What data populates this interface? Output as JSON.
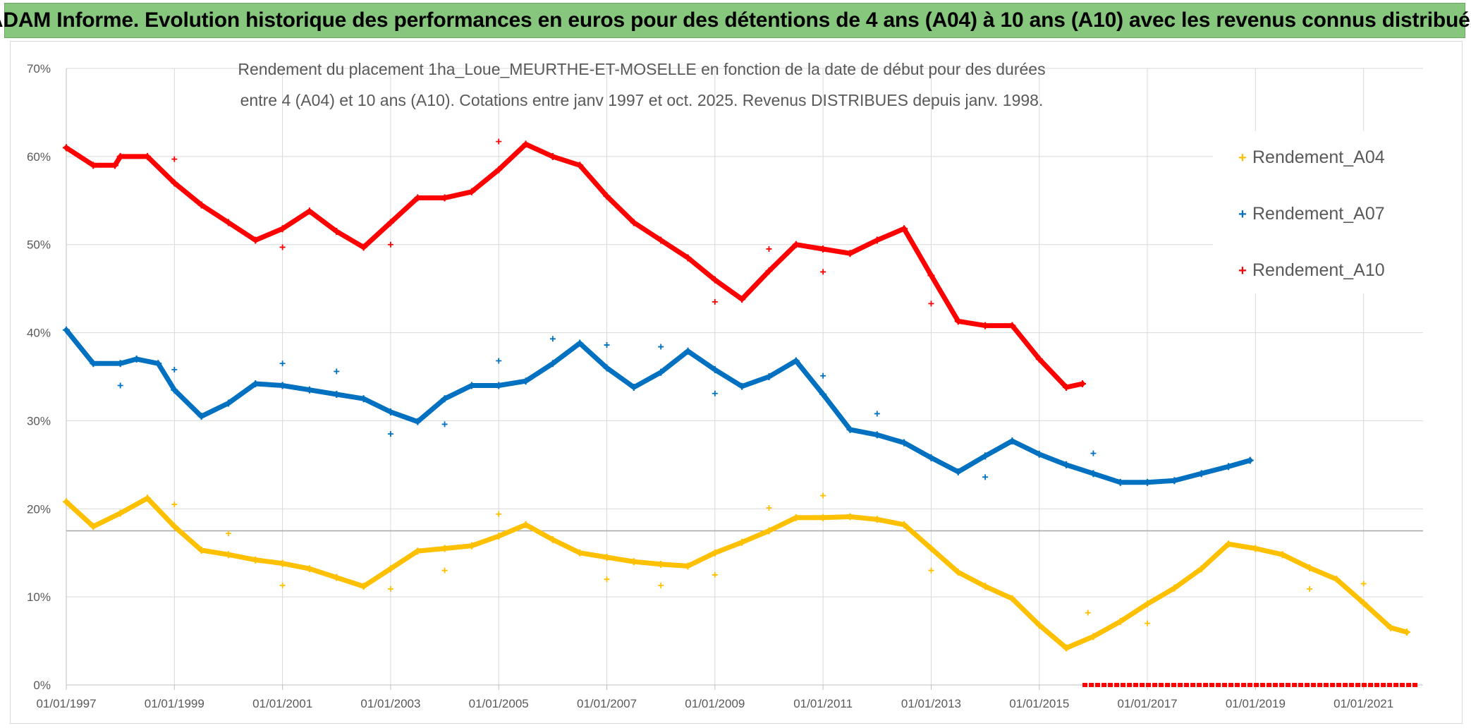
{
  "banner": {
    "title": "ADAM Informe. Evolution historique des performances en euros pour des détentions de 4 ans (A04) à 10 ans (A10) avec les revenus connus distribués"
  },
  "colors": {
    "banner_bg": "#86c67d",
    "A04": "#ffc000",
    "A07": "#0070c0",
    "A10": "#ff0000",
    "grid": "#d9d9d9",
    "text": "#595959"
  },
  "chart_data": {
    "type": "scatter",
    "title_lines": [
      "Rendement du placement 1ha_Loue_MEURTHE-ET-MOSELLE en fonction de la date de début pour des durées",
      "entre 4 (A04) et 10 ans (A10). Cotations entre janv 1997 et oct. 2025. Revenus DISTRIBUES depuis janv. 1998."
    ],
    "xlabel": "",
    "ylabel": "",
    "xlim": [
      1997.0,
      2022.1
    ],
    "ylim": [
      0,
      70
    ],
    "y_ticks": [
      0,
      10,
      20,
      30,
      40,
      50,
      60,
      70
    ],
    "y_tick_labels": [
      "0%",
      "10%",
      "20%",
      "30%",
      "40%",
      "50%",
      "60%",
      "70%"
    ],
    "x_ticks": [
      1997,
      1999,
      2001,
      2003,
      2005,
      2007,
      2009,
      2011,
      2013,
      2015,
      2017,
      2019,
      2021
    ],
    "x_tick_labels": [
      "01/01/1997",
      "01/01/1999",
      "01/01/2001",
      "01/01/2003",
      "01/01/2005",
      "01/01/2007",
      "01/01/2009",
      "01/01/2011",
      "01/01/2013",
      "01/01/2015",
      "01/01/2017",
      "01/01/2019",
      "01/01/2021"
    ],
    "reference_line_y": 17.5,
    "legend_position": "right",
    "series": [
      {
        "name": "Rendement_A04",
        "color": "#ffc000",
        "points": [
          [
            1997.0,
            20.8
          ],
          [
            1997.5,
            18.0
          ],
          [
            1998.0,
            19.5
          ],
          [
            1998.5,
            21.2
          ],
          [
            1999.0,
            18.0
          ],
          [
            1999.5,
            15.3
          ],
          [
            2000.0,
            14.8
          ],
          [
            2000.5,
            14.2
          ],
          [
            2001.0,
            13.8
          ],
          [
            2001.5,
            13.2
          ],
          [
            2002.0,
            12.2
          ],
          [
            2002.5,
            11.2
          ],
          [
            2003.0,
            13.2
          ],
          [
            2003.5,
            15.2
          ],
          [
            2004.0,
            15.5
          ],
          [
            2004.5,
            15.8
          ],
          [
            2005.0,
            16.9
          ],
          [
            2005.5,
            18.2
          ],
          [
            2006.0,
            16.5
          ],
          [
            2006.5,
            15.0
          ],
          [
            2007.0,
            14.5
          ],
          [
            2007.5,
            14.0
          ],
          [
            2008.0,
            13.7
          ],
          [
            2008.5,
            13.5
          ],
          [
            2009.0,
            15.0
          ],
          [
            2009.5,
            16.2
          ],
          [
            2010.0,
            17.5
          ],
          [
            2010.5,
            19.0
          ],
          [
            2011.0,
            19.0
          ],
          [
            2011.5,
            19.1
          ],
          [
            2012.0,
            18.8
          ],
          [
            2012.5,
            18.2
          ],
          [
            2013.0,
            15.5
          ],
          [
            2013.5,
            12.8
          ],
          [
            2014.0,
            11.2
          ],
          [
            2014.5,
            9.8
          ],
          [
            2015.0,
            6.8
          ],
          [
            2015.5,
            4.2
          ],
          [
            2016.0,
            5.5
          ],
          [
            2016.5,
            7.2
          ],
          [
            2017.0,
            9.2
          ],
          [
            2017.5,
            11.0
          ],
          [
            2018.0,
            13.2
          ],
          [
            2018.5,
            16.0
          ],
          [
            2019.0,
            15.5
          ],
          [
            2019.5,
            14.8
          ],
          [
            2020.0,
            13.3
          ],
          [
            2020.5,
            12.0
          ],
          [
            2021.0,
            9.3
          ],
          [
            2021.5,
            6.5
          ],
          [
            2021.8,
            6.0
          ]
        ],
        "outliers": [
          [
            1999.0,
            20.5
          ],
          [
            2000.0,
            17.2
          ],
          [
            2001.0,
            11.3
          ],
          [
            2003.0,
            10.9
          ],
          [
            2004.0,
            13.0
          ],
          [
            2005.0,
            19.4
          ],
          [
            2007.0,
            12.0
          ],
          [
            2008.0,
            11.3
          ],
          [
            2009.0,
            12.5
          ],
          [
            2010.0,
            20.1
          ],
          [
            2011.0,
            21.5
          ],
          [
            2013.0,
            13.0
          ],
          [
            2015.9,
            8.2
          ],
          [
            2017.0,
            7.0
          ],
          [
            2020.0,
            10.9
          ],
          [
            2021.0,
            11.5
          ]
        ]
      },
      {
        "name": "Rendement_A07",
        "color": "#0070c0",
        "points": [
          [
            1997.0,
            40.3
          ],
          [
            1997.5,
            36.5
          ],
          [
            1998.0,
            36.5
          ],
          [
            1998.3,
            37.0
          ],
          [
            1998.7,
            36.5
          ],
          [
            1999.0,
            33.5
          ],
          [
            1999.5,
            30.5
          ],
          [
            2000.0,
            32.0
          ],
          [
            2000.5,
            34.2
          ],
          [
            2001.0,
            34.0
          ],
          [
            2001.5,
            33.5
          ],
          [
            2002.0,
            33.0
          ],
          [
            2002.5,
            32.5
          ],
          [
            2003.0,
            31.0
          ],
          [
            2003.5,
            29.9
          ],
          [
            2004.0,
            32.5
          ],
          [
            2004.5,
            34.0
          ],
          [
            2005.0,
            34.0
          ],
          [
            2005.5,
            34.5
          ],
          [
            2006.0,
            36.5
          ],
          [
            2006.5,
            38.8
          ],
          [
            2007.0,
            36.0
          ],
          [
            2007.5,
            33.8
          ],
          [
            2008.0,
            35.5
          ],
          [
            2008.5,
            37.9
          ],
          [
            2009.0,
            35.8
          ],
          [
            2009.5,
            33.9
          ],
          [
            2010.0,
            35.0
          ],
          [
            2010.5,
            36.8
          ],
          [
            2011.0,
            33.0
          ],
          [
            2011.5,
            29.0
          ],
          [
            2012.0,
            28.4
          ],
          [
            2012.5,
            27.5
          ],
          [
            2013.0,
            25.8
          ],
          [
            2013.5,
            24.2
          ],
          [
            2014.0,
            26.0
          ],
          [
            2014.5,
            27.7
          ],
          [
            2015.0,
            26.2
          ],
          [
            2015.5,
            25.0
          ],
          [
            2016.0,
            24.0
          ],
          [
            2016.5,
            23.0
          ],
          [
            2017.0,
            23.0
          ],
          [
            2017.5,
            23.2
          ],
          [
            2018.0,
            24.0
          ],
          [
            2018.5,
            24.8
          ],
          [
            2018.9,
            25.5
          ]
        ],
        "outliers": [
          [
            1998.0,
            34.0
          ],
          [
            1999.0,
            35.8
          ],
          [
            2001.0,
            36.5
          ],
          [
            2002.0,
            35.6
          ],
          [
            2003.0,
            28.5
          ],
          [
            2004.0,
            29.6
          ],
          [
            2005.0,
            36.8
          ],
          [
            2006.0,
            39.3
          ],
          [
            2007.0,
            38.6
          ],
          [
            2008.0,
            38.4
          ],
          [
            2009.0,
            33.1
          ],
          [
            2011.0,
            35.1
          ],
          [
            2012.0,
            30.8
          ],
          [
            2014.0,
            23.6
          ],
          [
            2016.0,
            26.3
          ]
        ]
      },
      {
        "name": "Rendement_A10",
        "color": "#ff0000",
        "points": [
          [
            1997.0,
            61.0
          ],
          [
            1997.5,
            59.0
          ],
          [
            1997.9,
            59.0
          ],
          [
            1998.0,
            60.0
          ],
          [
            1998.5,
            60.0
          ],
          [
            1999.0,
            57.0
          ],
          [
            1999.5,
            54.5
          ],
          [
            2000.0,
            52.5
          ],
          [
            2000.5,
            50.5
          ],
          [
            2001.0,
            51.8
          ],
          [
            2001.5,
            53.8
          ],
          [
            2002.0,
            51.5
          ],
          [
            2002.5,
            49.7
          ],
          [
            2003.0,
            52.5
          ],
          [
            2003.5,
            55.3
          ],
          [
            2004.0,
            55.3
          ],
          [
            2004.5,
            56.0
          ],
          [
            2005.0,
            58.5
          ],
          [
            2005.5,
            61.4
          ],
          [
            2006.0,
            60.0
          ],
          [
            2006.5,
            59.0
          ],
          [
            2007.0,
            55.5
          ],
          [
            2007.5,
            52.5
          ],
          [
            2008.0,
            50.5
          ],
          [
            2008.5,
            48.5
          ],
          [
            2009.0,
            46.0
          ],
          [
            2009.5,
            43.8
          ],
          [
            2010.0,
            47.0
          ],
          [
            2010.5,
            50.0
          ],
          [
            2011.0,
            49.5
          ],
          [
            2011.5,
            49.0
          ],
          [
            2012.0,
            50.5
          ],
          [
            2012.5,
            51.8
          ],
          [
            2013.0,
            46.5
          ],
          [
            2013.5,
            41.3
          ],
          [
            2014.0,
            40.8
          ],
          [
            2014.5,
            40.8
          ],
          [
            2015.0,
            37.0
          ],
          [
            2015.5,
            33.8
          ],
          [
            2015.8,
            34.2
          ]
        ],
        "outliers": [
          [
            1999.0,
            59.7
          ],
          [
            2001.0,
            49.7
          ],
          [
            2003.0,
            50.0
          ],
          [
            2005.0,
            61.7
          ],
          [
            2009.0,
            43.5
          ],
          [
            2010.0,
            49.5
          ],
          [
            2011.0,
            46.9
          ],
          [
            2013.0,
            43.3
          ]
        ],
        "zero_segment": [
          2015.8,
          2022.0
        ]
      }
    ]
  }
}
